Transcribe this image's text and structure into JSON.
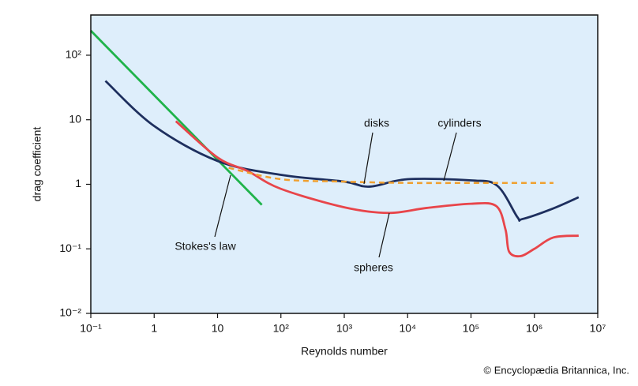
{
  "chart_data": {
    "type": "line",
    "xlabel": "Reynolds number",
    "ylabel": "drag coefficient",
    "credit": "© Encyclopædia Britannica, Inc.",
    "log_x": true,
    "log_y": true,
    "grid": false,
    "background": "#deeefb",
    "xlim": [
      0.1,
      10000000
    ],
    "ylim": [
      0.01,
      420
    ],
    "xticks": [
      {
        "value": 0.1,
        "label": "10⁻¹"
      },
      1,
      10,
      {
        "value": 100,
        "label": "10²"
      },
      {
        "value": 1000,
        "label": "10³"
      },
      {
        "value": 10000,
        "label": "10⁴"
      },
      {
        "value": 100000,
        "label": "10⁵"
      },
      {
        "value": 1000000,
        "label": "10⁶"
      },
      {
        "value": 10000000,
        "label": "10⁷"
      }
    ],
    "yticks": [
      {
        "value": 0.01,
        "label": "10⁻²"
      },
      {
        "value": 0.1,
        "label": "10⁻¹"
      },
      1,
      10,
      {
        "value": 100,
        "label": "10²"
      }
    ],
    "series": [
      {
        "name": "Stokes's law",
        "color": "#1fb34a",
        "dashed": false,
        "x": [
          0.1,
          50
        ],
        "values": [
          240,
          0.48
        ]
      },
      {
        "name": "cylinders",
        "color": "#1e2f5e",
        "dashed": false,
        "x": [
          0.17,
          1,
          10,
          100,
          1000,
          2500,
          10000,
          100000,
          260000,
          540000,
          650000,
          1950000,
          5000000
        ],
        "values": [
          40,
          8,
          2.3,
          1.4,
          1.1,
          0.92,
          1.2,
          1.15,
          0.95,
          0.31,
          0.29,
          0.42,
          0.63
        ]
      },
      {
        "name": "spheres",
        "color": "#e8454a",
        "dashed": false,
        "x": [
          2.2,
          10,
          30,
          100,
          1000,
          5000,
          20000,
          100000,
          250000,
          350000,
          400000,
          600000,
          1000000,
          2000000,
          5000000
        ],
        "values": [
          9.5,
          2.6,
          1.6,
          0.85,
          0.44,
          0.36,
          0.43,
          0.5,
          0.46,
          0.2,
          0.09,
          0.077,
          0.1,
          0.15,
          0.16
        ]
      },
      {
        "name": "disks",
        "color": "#f0a030",
        "dashed": true,
        "x": [
          15,
          100,
          1000,
          10000,
          100000,
          2000000
        ],
        "values": [
          1.8,
          1.2,
          1.1,
          1.05,
          1.05,
          1.05
        ]
      }
    ]
  }
}
